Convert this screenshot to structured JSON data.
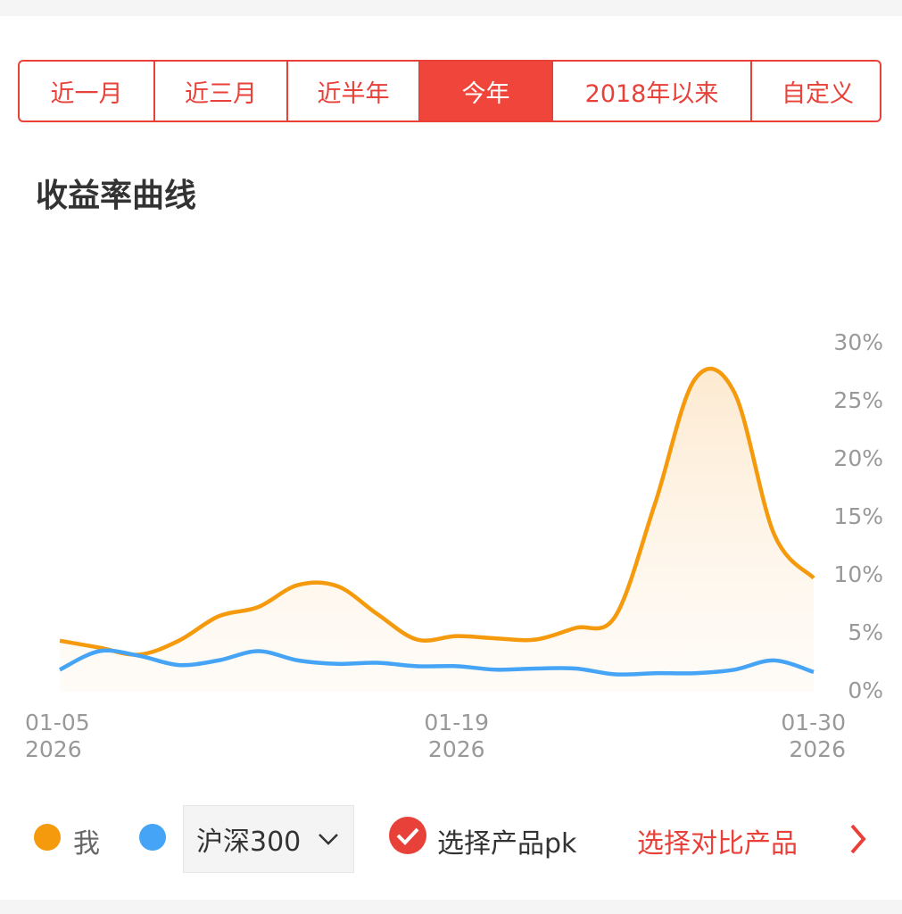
{
  "tabs": {
    "items": [
      "近一月",
      "近三月",
      "近半年",
      "今年",
      "2018年以来",
      "自定义"
    ],
    "active": 3
  },
  "section_title": "收益率曲线",
  "chart_data": {
    "type": "line",
    "categories": [
      "01-05\n2026",
      null,
      null,
      null,
      null,
      null,
      null,
      null,
      null,
      null,
      "01-19\n2026",
      null,
      null,
      null,
      null,
      null,
      null,
      null,
      null,
      "01-30\n2026"
    ],
    "series": [
      {
        "name": "我",
        "color": "#f59a0c",
        "area": true,
        "values": [
          4.4,
          3.8,
          3.2,
          4.4,
          6.5,
          7.3,
          9.2,
          9.1,
          6.7,
          4.5,
          4.8,
          4.6,
          4.5,
          5.5,
          6.5,
          16.2,
          26.9,
          25.8,
          13.6,
          9.8
        ]
      },
      {
        "name": "沪深300",
        "color": "#45a4f5",
        "values": [
          1.9,
          3.5,
          3.1,
          2.3,
          2.7,
          3.5,
          2.7,
          2.4,
          2.5,
          2.2,
          2.2,
          1.9,
          2.0,
          2.0,
          1.5,
          1.6,
          1.6,
          1.9,
          2.7,
          1.7
        ]
      }
    ],
    "ylim": [
      0,
      30
    ],
    "yticks": [
      {
        "value": 0,
        "label": "0%"
      },
      {
        "value": 5,
        "label": "5%"
      },
      {
        "value": 10,
        "label": "10%"
      },
      {
        "value": 15,
        "label": "15%"
      },
      {
        "value": 20,
        "label": "20%"
      },
      {
        "value": 25,
        "label": "25%"
      },
      {
        "value": 30,
        "label": "30%"
      }
    ],
    "y_axis_side": "right"
  },
  "controls": {
    "pk_label": "选择产品pk",
    "compare_link": "选择对比产品"
  }
}
